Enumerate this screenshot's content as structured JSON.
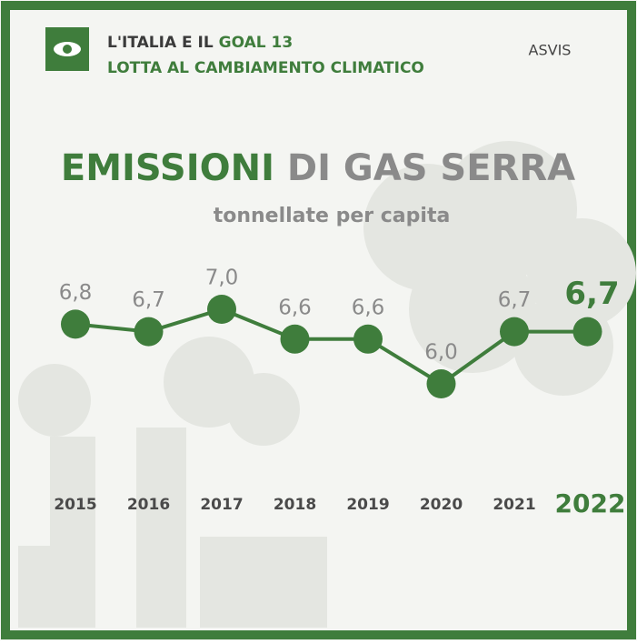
{
  "header": {
    "line1": "L'ITALIA E IL",
    "goal": "GOAL 13",
    "line2": "LOTTA AL CAMBIAMENTO CLIMATICO",
    "logo": "ASVIS"
  },
  "chart_data": {
    "type": "line",
    "title": "EMISSIONI",
    "title_rest": "DI GAS SERRA",
    "subtitle": "tonnellate per capita",
    "categories": [
      "2015",
      "2016",
      "2017",
      "2018",
      "2019",
      "2020",
      "2021",
      "2022"
    ],
    "values": [
      6.8,
      6.7,
      7.0,
      6.6,
      6.6,
      6.0,
      6.7,
      6.7
    ],
    "value_labels": [
      "6,8",
      "6,7",
      "7,0",
      "6,6",
      "6,6",
      "6,0",
      "6,7",
      "6,7"
    ],
    "color": "#3f7d3c"
  }
}
